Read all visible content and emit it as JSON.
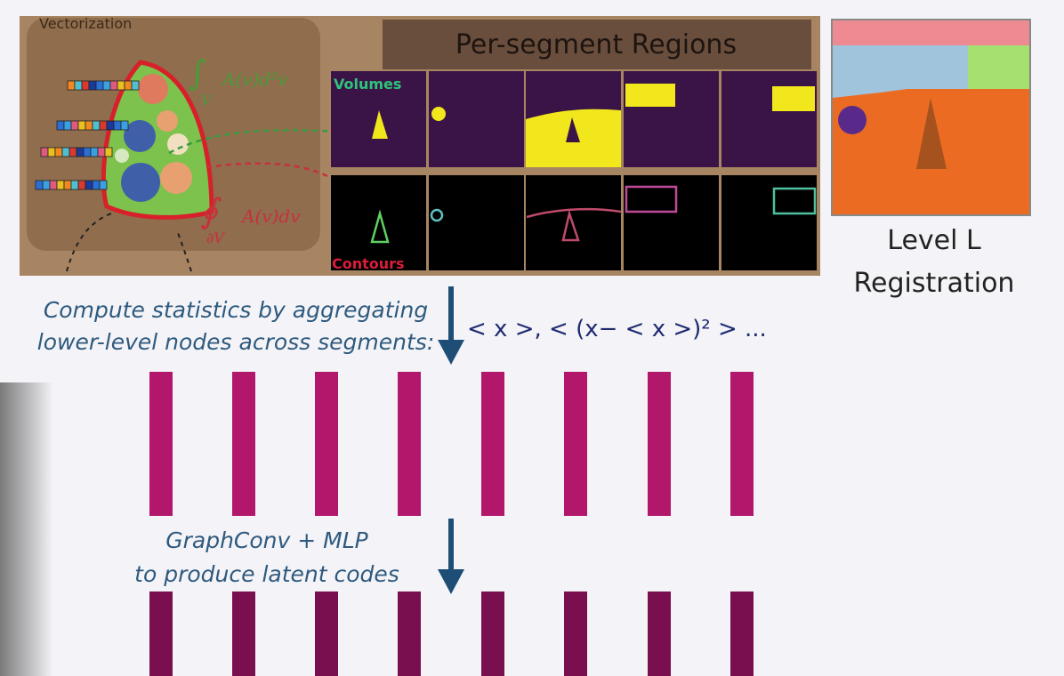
{
  "vectorization": {
    "label": "Vectorization",
    "volume_integral": {
      "symbol": "∫",
      "subscript": "V",
      "expression": "A(v)d²v"
    },
    "contour_integral": {
      "symbol": "∮",
      "subscript": "∂V",
      "expression": "A(v)dv"
    }
  },
  "regions": {
    "title": "Per-segment Regions",
    "volumes_label": "Volumes",
    "contours_label": "Contours"
  },
  "registration": {
    "line1": "Level L",
    "line2": "Registration"
  },
  "statistics": {
    "line1": "Compute statistics by aggregating",
    "line2": "lower-level nodes across segments:",
    "formula": "< x >,  < (x− < x >)² >  ..."
  },
  "graphconv": {
    "line1": "GraphConv + MLP",
    "line2": "to produce latent codes"
  }
}
